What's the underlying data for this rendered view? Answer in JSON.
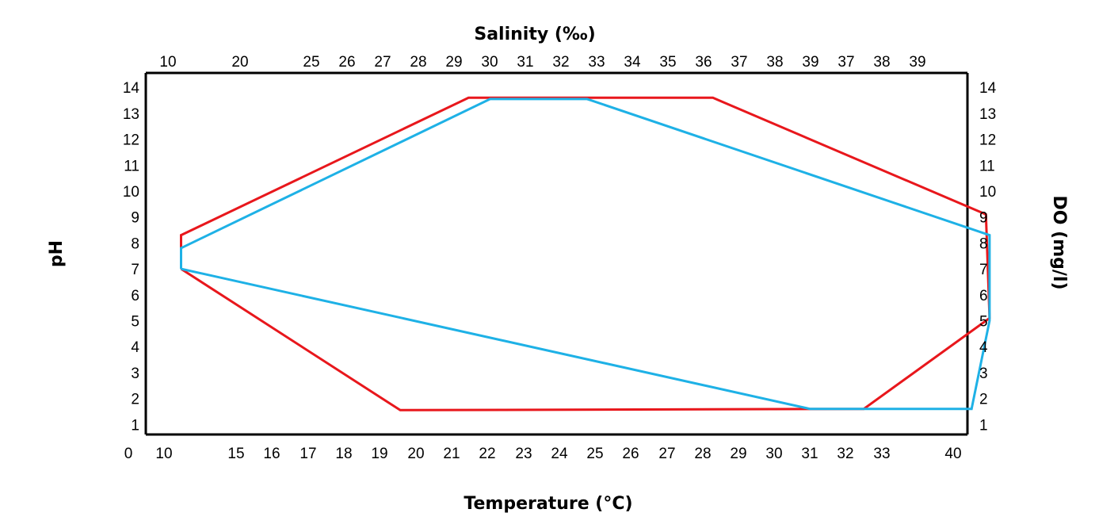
{
  "chart_data": {
    "type": "line",
    "title": "",
    "xlabel": "Temperature (°C)",
    "x2label": "Salinity (‰)",
    "ylabel": "pH",
    "y2label": "DO (mg/l)",
    "bottom_ticks": [
      "0",
      "10",
      "15",
      "16",
      "17",
      "18",
      "19",
      "20",
      "21",
      "22",
      "23",
      "24",
      "25",
      "26",
      "27",
      "28",
      "29",
      "30",
      "31",
      "32",
      "33",
      "40"
    ],
    "top_ticks": [
      "10",
      "20",
      "25",
      "26",
      "27",
      "28",
      "29",
      "30",
      "31",
      "32",
      "33",
      "34",
      "35",
      "36",
      "37",
      "38",
      "39",
      "37",
      "38",
      "39"
    ],
    "left_ticks": [
      "1",
      "2",
      "3",
      "4",
      "5",
      "6",
      "7",
      "8",
      "9",
      "10",
      "11",
      "12",
      "13",
      "14"
    ],
    "right_ticks": [
      "1",
      "2",
      "3",
      "4",
      "5",
      "6",
      "7",
      "8",
      "9",
      "10",
      "11",
      "12",
      "13",
      "14"
    ],
    "grid": false,
    "legend": "none",
    "series": [
      {
        "color": "#e8171c",
        "points": [
          [
            11,
            7.0
          ],
          [
            11,
            8.3
          ],
          [
            19,
            13.6
          ],
          [
            25.8,
            13.6
          ],
          [
            33.4,
            9.1
          ],
          [
            33.5,
            5.1
          ],
          [
            30,
            1.6
          ],
          [
            17.1,
            1.55
          ],
          [
            11,
            7.0
          ]
        ]
      },
      {
        "color": "#1eb1e6",
        "points": [
          [
            11,
            7.0
          ],
          [
            11,
            7.8
          ],
          [
            19.6,
            13.55
          ],
          [
            22.3,
            13.55
          ],
          [
            33.5,
            8.3
          ],
          [
            33.5,
            5.0
          ],
          [
            33,
            1.6
          ],
          [
            28.5,
            1.6
          ],
          [
            11,
            7.0
          ]
        ]
      }
    ]
  }
}
